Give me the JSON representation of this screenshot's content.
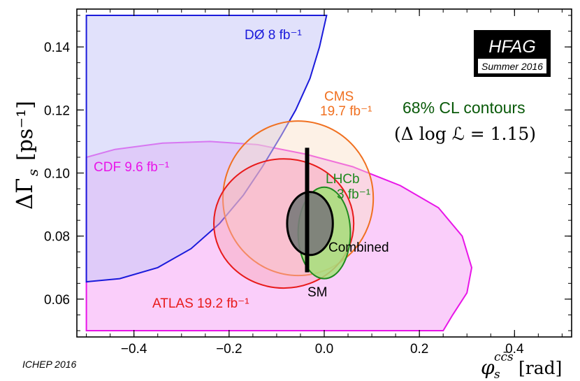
{
  "chart_data": {
    "type": "contour",
    "title": "68% CL contours",
    "subtitle": "(Δ log ℒ = 1.15)",
    "xlabel": "φ_s^{c c̄ s} [rad]",
    "xlabel_main": "φ",
    "xlabel_sub": "s",
    "xlabel_sup": "cc̄s",
    "xlabel_unit": "[rad]",
    "ylabel": "ΔΓ_s [ps⁻¹]",
    "ylabel_main": "ΔΓ",
    "ylabel_sub": "s",
    "ylabel_unit": "[ps⁻¹]",
    "xlim": [
      -0.52,
      0.52
    ],
    "ylim": [
      0.048,
      0.152
    ],
    "xticks": [
      -0.4,
      -0.2,
      0.0,
      0.2,
      0.4
    ],
    "xtick_labels": [
      "−0.4",
      "−0.2",
      "0.0",
      "0.2",
      "0.4"
    ],
    "yticks": [
      0.06,
      0.08,
      0.1,
      0.12,
      0.14
    ],
    "ytick_labels": [
      "0.06",
      "0.08",
      "0.10",
      "0.12",
      "0.14"
    ],
    "badge_main": "HFAG",
    "badge_sub": "Summer 2016",
    "footer": "ICHEP 2016",
    "experiments": [
      {
        "name": "DØ",
        "lumi": "8 fb⁻¹",
        "color": "#1a1adb",
        "fill": "#c9c9f7"
      },
      {
        "name": "CMS",
        "lumi": "19.7 fb⁻¹",
        "color": "#f07020",
        "fill": "#fbe0c8"
      },
      {
        "name": "LHCb",
        "lumi": "3 fb⁻¹",
        "color": "#1f8a1f",
        "fill": "#a6e07a"
      },
      {
        "name": "CDF",
        "lumi": "9.6 fb⁻¹",
        "color": "#e815e8",
        "fill": "#f9c6f9"
      },
      {
        "name": "ATLAS",
        "lumi": "19.2 fb⁻¹",
        "color": "#e81a1a",
        "fill": "#f9a8b8"
      },
      {
        "name": "Combined",
        "lumi": "",
        "color": "#000000",
        "fill": "#7a7a7a"
      }
    ],
    "ellipses": [
      {
        "name": "CMS",
        "cx": -0.055,
        "cy": 0.092,
        "rx": 0.158,
        "ry": 0.0245
      },
      {
        "name": "ATLAS",
        "cx": -0.085,
        "cy": 0.084,
        "rx": 0.147,
        "ry": 0.0205
      },
      {
        "name": "LHCb",
        "cx": 0.0,
        "cy": 0.081,
        "rx": 0.055,
        "ry": 0.0145
      },
      {
        "name": "Combined",
        "cx": -0.03,
        "cy": 0.084,
        "rx": 0.048,
        "ry": 0.01
      }
    ],
    "cdf_contour": [
      [
        -0.5,
        0.05
      ],
      [
        -0.5,
        0.105
      ],
      [
        -0.44,
        0.1075
      ],
      [
        -0.34,
        0.1095
      ],
      [
        -0.24,
        0.11
      ],
      [
        -0.14,
        0.109
      ],
      [
        -0.04,
        0.106
      ],
      [
        0.06,
        0.102
      ],
      [
        0.16,
        0.096
      ],
      [
        0.24,
        0.089
      ],
      [
        0.29,
        0.08
      ],
      [
        0.31,
        0.07
      ],
      [
        0.3,
        0.062
      ],
      [
        0.27,
        0.055
      ],
      [
        0.25,
        0.05
      ]
    ],
    "d0_contour": [
      [
        -0.5,
        0.15
      ],
      [
        0.005,
        0.15
      ],
      [
        -0.01,
        0.14
      ],
      [
        -0.03,
        0.13
      ],
      [
        -0.06,
        0.12
      ],
      [
        -0.09,
        0.112
      ],
      [
        -0.13,
        0.102
      ],
      [
        -0.17,
        0.093
      ],
      [
        -0.22,
        0.084
      ],
      [
        -0.28,
        0.076
      ],
      [
        -0.35,
        0.07
      ],
      [
        -0.43,
        0.0665
      ],
      [
        -0.5,
        0.0655
      ]
    ],
    "sm_band": {
      "x": -0.036,
      "y_low": 0.0685,
      "y_high": 0.108
    }
  },
  "labels": {
    "d0": "DØ 8 fb⁻¹",
    "cms1": "CMS",
    "cms2": "19.7 fb⁻¹",
    "cdf": "CDF 9.6 fb⁻¹",
    "lhcb1": "LHCb",
    "lhcb2": "3 fb⁻¹",
    "combined": "Combined",
    "sm": "SM",
    "atlas": "ATLAS 19.2 fb⁻¹"
  }
}
